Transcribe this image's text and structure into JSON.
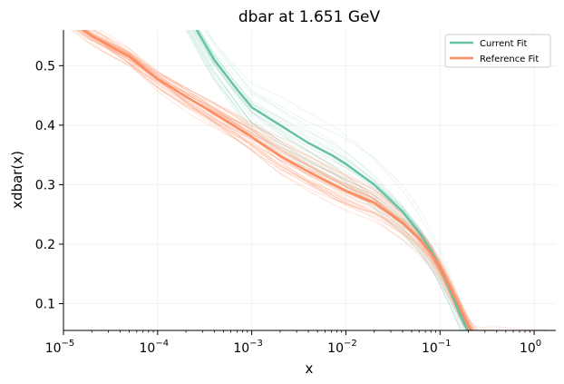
{
  "chart_data": {
    "type": "line",
    "title": "dbar at 1.651 GeV",
    "xlabel": "x",
    "ylabel": "xdbar(x)",
    "xscale": "log",
    "xlim": [
      1e-05,
      1.7
    ],
    "ylim": [
      0.055,
      0.56
    ],
    "grid": true,
    "legend_position": "top-right",
    "x_ticks": [
      {
        "value": 1e-05,
        "base": "10",
        "exp": "−5"
      },
      {
        "value": 0.0001,
        "base": "10",
        "exp": "−4"
      },
      {
        "value": 0.001,
        "base": "10",
        "exp": "−3"
      },
      {
        "value": 0.01,
        "base": "10",
        "exp": "−2"
      },
      {
        "value": 0.1,
        "base": "10",
        "exp": "−1"
      },
      {
        "value": 1,
        "base": "10",
        "exp": "0"
      }
    ],
    "y_ticks": [
      {
        "value": 0.1,
        "label": "0.1"
      },
      {
        "value": 0.2,
        "label": "0.2"
      },
      {
        "value": 0.3,
        "label": "0.3"
      },
      {
        "value": 0.4,
        "label": "0.4"
      },
      {
        "value": 0.5,
        "label": "0.5"
      }
    ],
    "series": [
      {
        "name": "Current Fit",
        "color": "#66c2a5",
        "x": [
          0.00026,
          0.0004,
          0.0007,
          0.001,
          0.002,
          0.004,
          0.007,
          0.01,
          0.02,
          0.04,
          0.06,
          0.08,
          0.1,
          0.13,
          0.16,
          0.19,
          0.22
        ],
        "y": [
          0.56,
          0.51,
          0.46,
          0.43,
          0.4,
          0.37,
          0.35,
          0.335,
          0.3,
          0.255,
          0.22,
          0.19,
          0.16,
          0.12,
          0.085,
          0.06,
          0.04
        ]
      },
      {
        "name": "Reference Fit",
        "color": "#fc8d62",
        "x": [
          1e-05,
          2e-05,
          5e-05,
          0.0001,
          0.0002,
          0.0005,
          0.001,
          0.002,
          0.004,
          0.007,
          0.01,
          0.02,
          0.04,
          0.06,
          0.08,
          0.1,
          0.13,
          0.16,
          0.19,
          0.22,
          0.24
        ],
        "y": [
          0.583,
          0.55,
          0.515,
          0.478,
          0.448,
          0.41,
          0.38,
          0.348,
          0.322,
          0.302,
          0.29,
          0.27,
          0.236,
          0.21,
          0.185,
          0.16,
          0.125,
          0.095,
          0.07,
          0.052,
          0.045
        ]
      }
    ]
  }
}
